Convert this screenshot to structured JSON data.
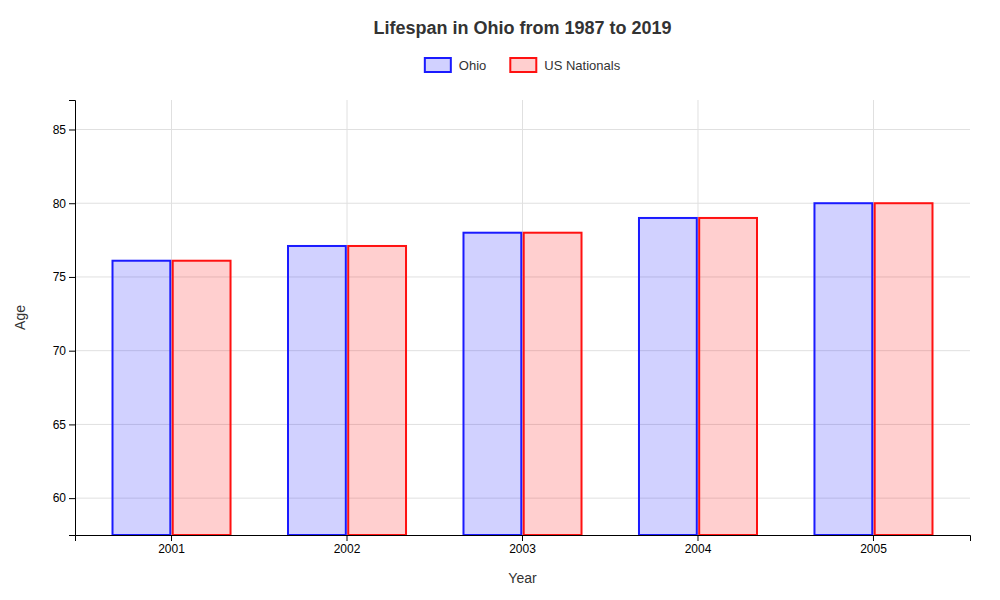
{
  "chart_data": {
    "type": "bar",
    "title": "Lifespan in Ohio from 1987 to 2019",
    "xlabel": "Year",
    "ylabel": "Age",
    "categories": [
      "2001",
      "2002",
      "2003",
      "2004",
      "2005"
    ],
    "series": [
      {
        "name": "Ohio",
        "color": "#1a1aff",
        "values": [
          76.1,
          77.1,
          78.0,
          79.0,
          80.0
        ]
      },
      {
        "name": "US Nationals",
        "color": "#ff1111",
        "values": [
          76.1,
          77.1,
          78.0,
          79.0,
          80.0
        ]
      }
    ],
    "ylim": [
      57.5,
      87
    ],
    "yticks": [
      60,
      65,
      70,
      75,
      80,
      85
    ],
    "grid": true,
    "legend": "top"
  }
}
